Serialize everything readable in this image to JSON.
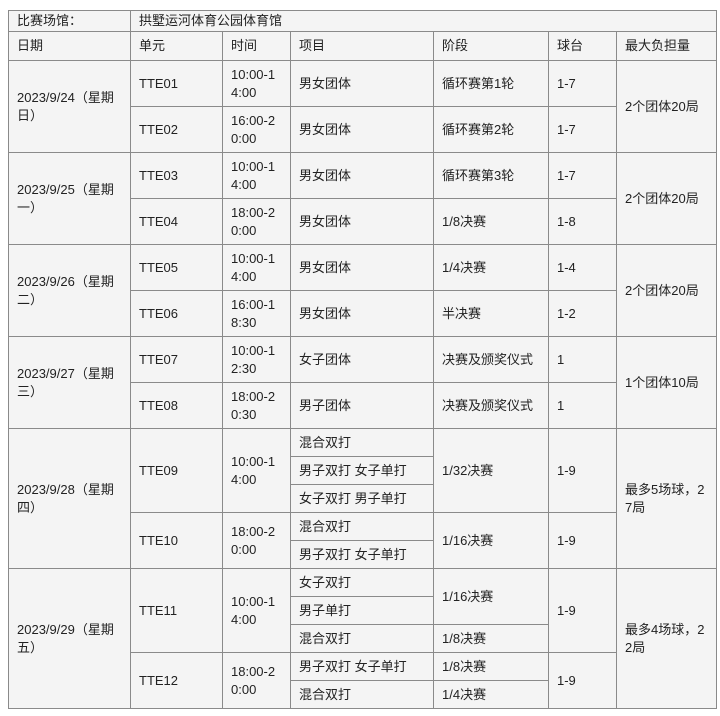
{
  "venue": {
    "label": "比赛场馆：",
    "value": "拱墅运河体育公园体育馆"
  },
  "headers": [
    "日期",
    "单元",
    "时间",
    "项目",
    "阶段",
    "球台",
    "最大负担量"
  ],
  "days": [
    {
      "date": "2023/9/24（星期日）",
      "load": "2个团体20局",
      "sessions": [
        {
          "unit": "TTE01",
          "time": "10:00-14:00",
          "rows": [
            {
              "event": "男女团体",
              "stage": "循环赛第1轮",
              "table": "1-7"
            }
          ]
        },
        {
          "unit": "TTE02",
          "time": "16:00-20:00",
          "rows": [
            {
              "event": "男女团体",
              "stage": "循环赛第2轮",
              "table": "1-7"
            }
          ]
        }
      ]
    },
    {
      "date": "2023/9/25（星期一）",
      "load": "2个团体20局",
      "sessions": [
        {
          "unit": "TTE03",
          "time": "10:00-14:00",
          "rows": [
            {
              "event": "男女团体",
              "stage": "循环赛第3轮",
              "table": "1-7"
            }
          ]
        },
        {
          "unit": "TTE04",
          "time": "18:00-20:00",
          "rows": [
            {
              "event": "男女团体",
              "stage": "1/8决赛",
              "table": "1-8"
            }
          ]
        }
      ]
    },
    {
      "date": "2023/9/26（星期二）",
      "load": "2个团体20局",
      "sessions": [
        {
          "unit": "TTE05",
          "time": "10:00-14:00",
          "rows": [
            {
              "event": "男女团体",
              "stage": "1/4决赛",
              "table": "1-4"
            }
          ]
        },
        {
          "unit": "TTE06",
          "time": "16:00-18:30",
          "rows": [
            {
              "event": "男女团体",
              "stage": "半决赛",
              "table": "1-2"
            }
          ]
        }
      ]
    },
    {
      "date": "2023/9/27（星期三）",
      "load": "1个团体10局",
      "sessions": [
        {
          "unit": "TTE07",
          "time": "10:00-12:30",
          "rows": [
            {
              "event": "女子团体",
              "stage": "决赛及颁奖仪式",
              "table": "1"
            }
          ]
        },
        {
          "unit": "TTE08",
          "time": "18:00-20:30",
          "rows": [
            {
              "event": "男子团体",
              "stage": "决赛及颁奖仪式",
              "table": "1"
            }
          ]
        }
      ]
    },
    {
      "date": "2023/9/28（星期四）",
      "load": "最多5场球，27局",
      "sessions": [
        {
          "unit": "TTE09",
          "time": "10:00-14:00",
          "rows": [
            {
              "event": "混合双打",
              "stage": "1/32决赛",
              "stage_span": 3,
              "table": "1-9",
              "table_span": 3
            },
            {
              "event": "男子双打 女子单打"
            },
            {
              "event": "女子双打 男子单打"
            }
          ]
        },
        {
          "unit": "TTE10",
          "time": "18:00-20:00",
          "rows": [
            {
              "event": "混合双打",
              "stage": "1/16决赛",
              "stage_span": 2,
              "table": "1-9",
              "table_span": 2
            },
            {
              "event": "男子双打 女子单打"
            }
          ]
        }
      ]
    },
    {
      "date": "2023/9/29（星期五）",
      "load": "最多4场球，22局",
      "sessions": [
        {
          "unit": "TTE11",
          "time": "10:00-14:00",
          "rows": [
            {
              "event": "女子双打",
              "stage": "1/16决赛",
              "stage_span": 2,
              "table": "1-9",
              "table_span": 3
            },
            {
              "event": "男子单打"
            },
            {
              "event": "混合双打",
              "stage": "1/8决赛"
            }
          ]
        },
        {
          "unit": "TTE12",
          "time": "18:00-20:00",
          "rows": [
            {
              "event": "男子双打 女子单打",
              "stage": "1/8决赛",
              "table": "1-9",
              "table_span": 2
            },
            {
              "event": "混合双打",
              "stage": "1/4决赛"
            }
          ]
        }
      ]
    }
  ]
}
